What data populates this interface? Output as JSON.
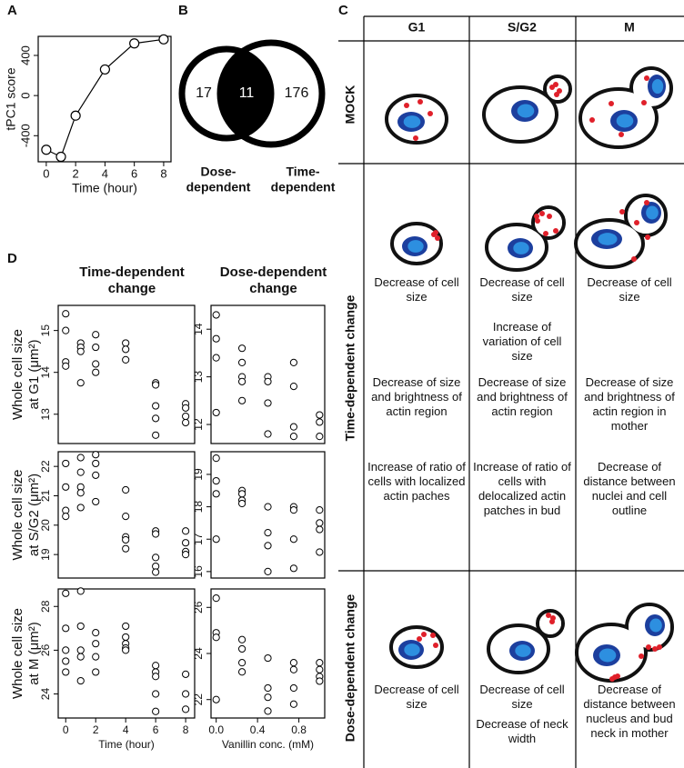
{
  "panel_labels": [
    "A",
    "B",
    "C",
    "D"
  ],
  "chart_data": [
    {
      "type": "line",
      "x": [
        0,
        1,
        2,
        4,
        6,
        8
      ],
      "values": [
        -540,
        -610,
        -200,
        260,
        520,
        560
      ],
      "xlim": [
        -0.55,
        8.5
      ],
      "ylim": [
        -660,
        590
      ],
      "xticks": [
        0,
        2,
        4,
        6,
        8
      ],
      "yticks": [
        -400,
        0,
        400
      ],
      "xlabel": "Time (hour)",
      "ylabel": "tPC1 score"
    },
    {
      "type": "venn",
      "sets": [
        {
          "name": [
            "Dose-",
            "dependent"
          ],
          "only": 17
        },
        {
          "name": [
            "Time-",
            "dependent"
          ],
          "only": 176
        }
      ],
      "intersection": 11
    },
    {
      "type": "scatter",
      "title": [
        "Time-dependent",
        "change"
      ],
      "ylabel": [
        "Whole cell size",
        "at G1 (μm²)"
      ],
      "x": [
        0,
        0,
        0,
        0,
        1,
        1,
        1,
        1,
        2,
        2,
        2,
        2,
        4,
        4,
        4,
        6,
        6,
        6,
        6,
        6,
        8,
        8,
        8,
        8
      ],
      "values": [
        15.4,
        15.0,
        14.25,
        14.15,
        14.7,
        14.6,
        14.5,
        13.75,
        14.9,
        14.6,
        14.2,
        14.0,
        14.7,
        14.55,
        14.3,
        13.75,
        13.7,
        13.2,
        12.9,
        12.5,
        13.25,
        13.15,
        12.95,
        12.8
      ],
      "xlim": [
        -0.5,
        8.6
      ],
      "ylim": [
        12.3,
        15.6
      ],
      "yticks": [
        13,
        14,
        15
      ]
    },
    {
      "type": "scatter",
      "title": [
        "Dose-dependent",
        "change"
      ],
      "x": [
        0,
        0,
        0,
        0,
        0.25,
        0.25,
        0.25,
        0.25,
        0.25,
        0.5,
        0.5,
        0.5,
        0.5,
        0.75,
        0.75,
        0.75,
        0.75,
        1,
        1,
        1
      ],
      "values": [
        14.3,
        13.8,
        13.4,
        12.25,
        13.6,
        13.3,
        13.0,
        12.9,
        12.5,
        13.0,
        12.9,
        12.45,
        11.8,
        13.3,
        12.8,
        11.95,
        11.75,
        12.2,
        12.05,
        11.75
      ],
      "xlim": [
        -0.05,
        1.05
      ],
      "ylim": [
        11.6,
        14.5
      ],
      "yticks": [
        12,
        13,
        14
      ]
    },
    {
      "type": "scatter",
      "ylabel": [
        "Whole cell size",
        "at S/G2 (μm²)"
      ],
      "x": [
        0,
        0,
        0,
        0,
        1,
        1,
        1,
        1,
        1,
        2,
        2,
        2,
        2,
        4,
        4,
        4,
        4,
        4,
        6,
        6,
        6,
        6,
        6,
        8,
        8,
        8,
        8
      ],
      "values": [
        22.1,
        21.3,
        20.5,
        20.3,
        22.3,
        21.8,
        21.3,
        21.1,
        20.6,
        22.4,
        22.1,
        21.7,
        20.8,
        21.2,
        20.3,
        19.6,
        19.5,
        19.2,
        19.8,
        19.7,
        18.9,
        18.6,
        18.4,
        19.8,
        19.4,
        19.1,
        19.0
      ],
      "xlim": [
        -0.5,
        8.6
      ],
      "ylim": [
        18.2,
        22.5
      ],
      "yticks": [
        19,
        20,
        21,
        22
      ]
    },
    {
      "type": "scatter",
      "x": [
        0,
        0,
        0,
        0,
        0.25,
        0.25,
        0.25,
        0.25,
        0.5,
        0.5,
        0.5,
        0.5,
        0.75,
        0.75,
        0.75,
        0.75,
        1,
        1,
        1,
        1
      ],
      "values": [
        19.5,
        18.8,
        18.4,
        17.0,
        18.5,
        18.4,
        18.2,
        18.1,
        18.0,
        17.2,
        16.8,
        16.0,
        18.0,
        17.9,
        17.0,
        16.1,
        17.9,
        17.5,
        17.3,
        16.6
      ],
      "xlim": [
        -0.05,
        1.05
      ],
      "ylim": [
        15.8,
        19.7
      ],
      "yticks": [
        16,
        17,
        18,
        19
      ]
    },
    {
      "type": "scatter",
      "ylabel": [
        "Whole cell size",
        "at M (μm²)"
      ],
      "xlabel": "Time (hour)",
      "x": [
        0,
        0,
        0,
        0,
        0,
        1,
        1,
        1,
        1,
        1,
        2,
        2,
        2,
        2,
        4,
        4,
        4,
        4,
        4,
        6,
        6,
        6,
        6,
        6,
        8,
        8,
        8
      ],
      "values": [
        28.6,
        27.0,
        26.0,
        25.5,
        25.0,
        28.7,
        27.1,
        26.0,
        25.7,
        24.6,
        26.8,
        26.3,
        25.7,
        25.0,
        27.1,
        26.6,
        26.3,
        26.1,
        26.0,
        25.3,
        25.0,
        24.8,
        24.0,
        23.2,
        24.9,
        24.0,
        23.3
      ],
      "xlim": [
        -0.5,
        8.6
      ],
      "ylim": [
        22.9,
        28.8
      ],
      "xticks": [
        0,
        2,
        4,
        6,
        8
      ],
      "yticks": [
        24,
        26,
        28
      ]
    },
    {
      "type": "scatter",
      "xlabel": "Vanillin conc. (mM)",
      "x": [
        0,
        0,
        0,
        0,
        0.25,
        0.25,
        0.25,
        0.25,
        0.5,
        0.5,
        0.5,
        0.5,
        0.75,
        0.75,
        0.75,
        0.75,
        1,
        1,
        1,
        1
      ],
      "values": [
        26.4,
        24.9,
        24.7,
        22.0,
        24.6,
        24.2,
        23.6,
        23.2,
        23.8,
        22.5,
        22.1,
        21.5,
        23.6,
        23.3,
        22.5,
        21.8,
        23.6,
        23.3,
        23.0,
        22.8
      ],
      "xlim": [
        -0.05,
        1.05
      ],
      "ylim": [
        21.2,
        26.8
      ],
      "xticks": [
        {
          "value": 0,
          "label": "0.0"
        },
        0.4,
        0.8
      ],
      "yticks": [
        22,
        24,
        26
      ]
    }
  ],
  "panel_c": {
    "columns": [
      "G1",
      "S/G2",
      "M"
    ],
    "rows": [
      {
        "label": "MOCK",
        "cells": [
          [],
          [],
          []
        ]
      },
      {
        "label": "Time-dependent change",
        "cells": [
          [
            "Decrease of cell size",
            "Decrease of size and brightness of actin region",
            "Increase of ratio of cells with localized actin paches"
          ],
          [
            "Decrease of cell size",
            "Increase of variation of cell size",
            "Decrease of size and brightness of actin region",
            "Increase of ratio of cells with delocalized actin patches in bud"
          ],
          [
            "Decrease of cell size",
            "Decrease of size and brightness of actin region in mother",
            "Decrease of distance between nuclei and cell outline"
          ]
        ]
      },
      {
        "label": "Dose-dependent change",
        "cells": [
          [
            "Decrease of cell size"
          ],
          [
            "Decrease of cell size",
            "Decrease of neck width"
          ],
          [
            "Decrease of distance between nucleus and bud neck in mother"
          ]
        ]
      }
    ]
  }
}
